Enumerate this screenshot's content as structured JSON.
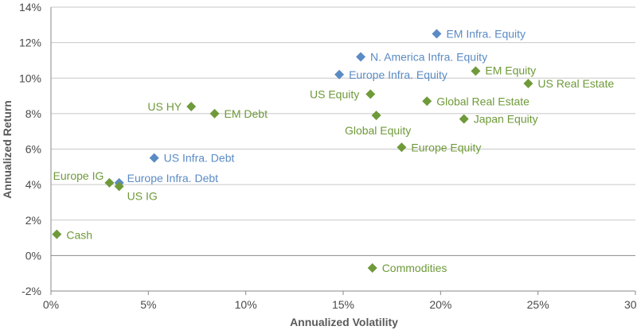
{
  "chart_data": {
    "type": "scatter",
    "title": "",
    "xlabel": "Annualized Volatility",
    "ylabel": "Annualized Return",
    "xlim": [
      0,
      30
    ],
    "ylim": [
      -2,
      14
    ],
    "x_ticks": [
      "0%",
      "5%",
      "10%",
      "15%",
      "20%",
      "25%",
      "30%"
    ],
    "y_ticks": [
      "-2%",
      "0%",
      "2%",
      "4%",
      "6%",
      "8%",
      "10%",
      "12%",
      "14%"
    ],
    "grid": "horizontal",
    "colors": {
      "infrastructure": "#5b8bc4",
      "other": "#6f9a3a"
    },
    "series": [
      {
        "group": "infrastructure",
        "points": [
          {
            "label": "EM Infra. Equity",
            "x": 19.8,
            "y": 12.5
          },
          {
            "label": "N. America Infra. Equity",
            "x": 15.9,
            "y": 11.2
          },
          {
            "label": "Europe Infra. Equity",
            "x": 14.8,
            "y": 10.2
          },
          {
            "label": "US Infra. Debt",
            "x": 5.3,
            "y": 5.5
          },
          {
            "label": "Europe Infra. Debt",
            "x": 3.5,
            "y": 4.1
          }
        ]
      },
      {
        "group": "other",
        "points": [
          {
            "label": "EM Equity",
            "x": 21.8,
            "y": 10.4
          },
          {
            "label": "US Real Estate",
            "x": 24.5,
            "y": 9.7
          },
          {
            "label": "US Equity",
            "x": 16.4,
            "y": 9.1
          },
          {
            "label": "Global Real Estate",
            "x": 19.3,
            "y": 8.7
          },
          {
            "label": "US HY",
            "x": 7.2,
            "y": 8.4
          },
          {
            "label": "EM Debt",
            "x": 8.4,
            "y": 8.0
          },
          {
            "label": "Global Equity",
            "x": 16.7,
            "y": 7.9
          },
          {
            "label": "Japan Equity",
            "x": 21.2,
            "y": 7.7
          },
          {
            "label": "Europe Equity",
            "x": 18.0,
            "y": 6.1
          },
          {
            "label": "Europe IG",
            "x": 3.0,
            "y": 4.1
          },
          {
            "label": "US IG",
            "x": 3.5,
            "y": 3.9
          },
          {
            "label": "Cash",
            "x": 0.3,
            "y": 1.2
          },
          {
            "label": "Commodities",
            "x": 16.5,
            "y": -0.7
          }
        ]
      }
    ]
  }
}
